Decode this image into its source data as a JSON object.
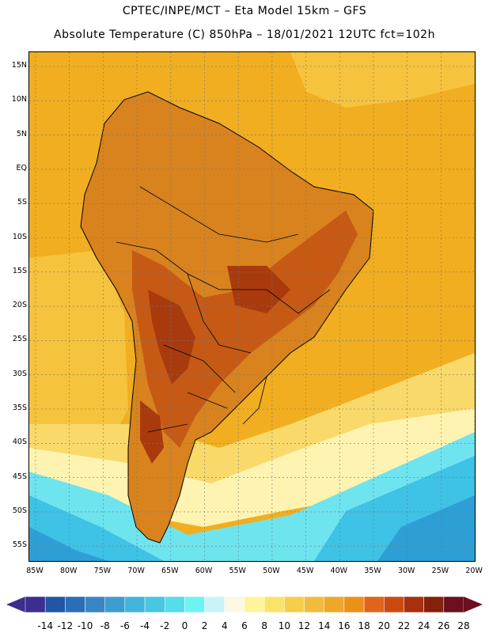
{
  "title_line1": "CPTEC/INPE/MCT –  Eta Model 15km – GFS",
  "title_line2": "Absolute Temperature (C) 850hPa – 18/01/2021 12UTC fct=102h",
  "lat_labels": [
    "15N",
    "10N",
    "5N",
    "EQ",
    "5S",
    "10S",
    "15S",
    "20S",
    "25S",
    "30S",
    "35S",
    "40S",
    "45S",
    "50S",
    "55S"
  ],
  "lon_labels": [
    "85W",
    "80W",
    "75W",
    "70W",
    "65W",
    "60W",
    "55W",
    "50W",
    "45W",
    "40W",
    "35W",
    "30W",
    "25W",
    "20W"
  ],
  "colorbar": {
    "labels": [
      "-14",
      "-12",
      "-10",
      "-8",
      "-6",
      "-4",
      "-2",
      "0",
      "2",
      "4",
      "6",
      "8",
      "10",
      "12",
      "14",
      "16",
      "18",
      "20",
      "22",
      "24",
      "26",
      "28"
    ],
    "colors": [
      "#3b2e90",
      "#2156a6",
      "#2a6fb6",
      "#3a86c4",
      "#3e9dcf",
      "#42b5d8",
      "#48c8e0",
      "#55dde9",
      "#6ef3f3",
      "#c8f4f7",
      "#fdf8e1",
      "#fdf59a",
      "#f9e46a",
      "#f5cf4a",
      "#f2bb3c",
      "#eea72a",
      "#ea9118",
      "#e0641a",
      "#cc4a12",
      "#a9300e",
      "#84200c",
      "#6d0f1e"
    ]
  },
  "map_colors": {
    "ocean": "#f1ae20",
    "land_base": "#d8831e",
    "hot": "#c65a14",
    "very_hot": "#a93a0e",
    "warm_ocean": "#f6c33e",
    "mild": "#f8d96a",
    "cool": "#fff3b2",
    "cold": "#6ee4ef",
    "colder": "#3ec2e6",
    "coldest": "#2e9fd4"
  }
}
